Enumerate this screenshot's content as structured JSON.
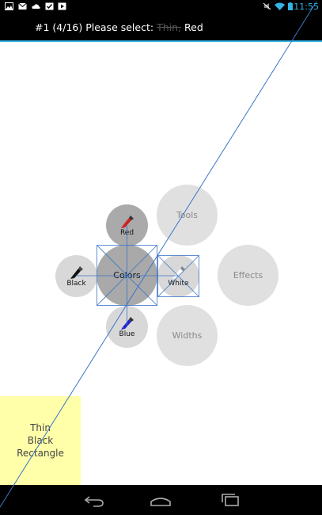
{
  "status_bar": {
    "time": "11:55",
    "icons": [
      "gallery-icon",
      "mail-icon",
      "cloud-icon",
      "calendar-check-icon",
      "play-store-icon",
      "no-sound-icon",
      "wifi-icon",
      "battery-icon"
    ],
    "accent_color": "#33b5e5"
  },
  "title_bar": {
    "prefix": "#1 (4/16) Please select:",
    "struck_option": "Thin,",
    "current_option": "Red"
  },
  "marking_menu": {
    "center": {
      "label": "Colors"
    },
    "items": {
      "red": {
        "label": "Red",
        "icon": "red-paint-tube-icon",
        "color": "#cc2222"
      },
      "black": {
        "label": "Black",
        "icon": "black-paint-tube-icon",
        "color": "#000000"
      },
      "white": {
        "label": "White",
        "icon": "white-paint-tube-icon",
        "color": "#ffffff"
      },
      "blue": {
        "label": "Blue",
        "icon": "blue-paint-tube-icon",
        "color": "#2222cc"
      }
    },
    "categories": {
      "tools": {
        "label": "Tools"
      },
      "effects": {
        "label": "Effects"
      },
      "widths": {
        "label": "Widths"
      }
    }
  },
  "stimulus": {
    "text": "Thin\nBlack\nRectangle",
    "background": "#ffffaa"
  },
  "nav_bar": {
    "buttons": [
      "back-icon",
      "home-icon",
      "recent-apps-icon"
    ]
  }
}
